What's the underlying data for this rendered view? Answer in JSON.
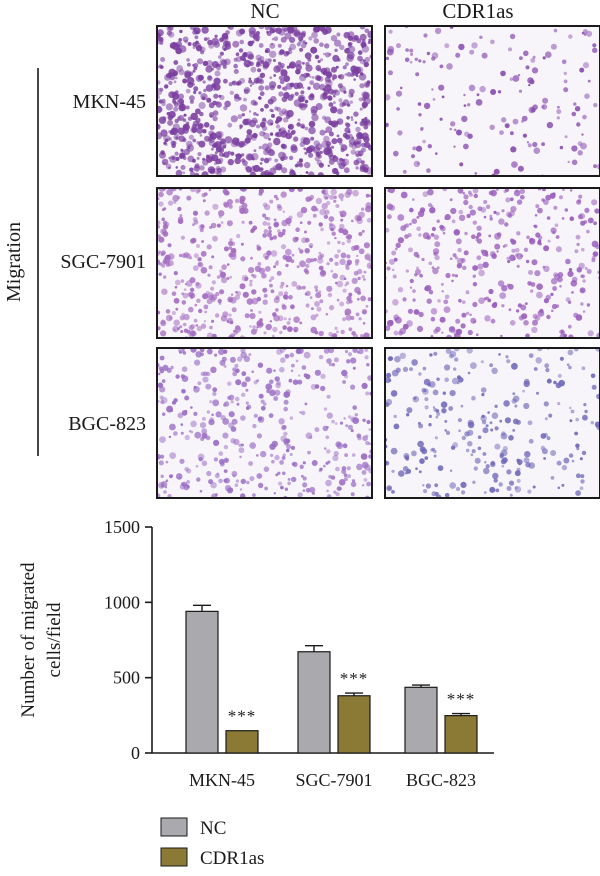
{
  "panel": {
    "columns": [
      "NC",
      "CDR1as"
    ],
    "side_label": "Migration",
    "rows": [
      "MKN-45",
      "SGC-7901",
      "BGC-823"
    ],
    "micrographs": [
      {
        "name": "mkn45-nc-micrograph",
        "row": 0,
        "col": 0,
        "relative_cell_density": 1.0,
        "stain": "#7b3fa0"
      },
      {
        "name": "mkn45-cdr1as-micrograph",
        "row": 0,
        "col": 1,
        "relative_cell_density": 0.18,
        "stain": "#8a4db0"
      },
      {
        "name": "sgc7901-nc-micrograph",
        "row": 1,
        "col": 0,
        "relative_cell_density": 0.62,
        "stain": "#a46bc0"
      },
      {
        "name": "sgc7901-cdr1as-micrograph",
        "row": 1,
        "col": 1,
        "relative_cell_density": 0.42,
        "stain": "#9a5cbb"
      },
      {
        "name": "bgc823-nc-micrograph",
        "row": 2,
        "col": 0,
        "relative_cell_density": 0.45,
        "stain": "#9a6cc4"
      },
      {
        "name": "bgc823-cdr1as-micrograph",
        "row": 2,
        "col": 1,
        "relative_cell_density": 0.3,
        "stain": "#7068b8"
      }
    ]
  },
  "chart_data": {
    "type": "bar",
    "categories": [
      "MKN-45",
      "SGC-7901",
      "BGC-823"
    ],
    "series": [
      {
        "name": "NC",
        "color": "#a9a9ae",
        "values": [
          940,
          672,
          436
        ],
        "errors": [
          40,
          40,
          15
        ]
      },
      {
        "name": "CDR1as",
        "color": "#8b7a36",
        "values": [
          148,
          380,
          248
        ],
        "errors": [
          0,
          18,
          14
        ]
      }
    ],
    "significance": [
      "***",
      "***",
      "***"
    ],
    "ylabel_lines": [
      "Number of migrated",
      "cells/field"
    ],
    "ylim": [
      0,
      1500
    ],
    "yticks": [
      0,
      500,
      1000,
      1500
    ],
    "legend_position": "bottom-left"
  }
}
